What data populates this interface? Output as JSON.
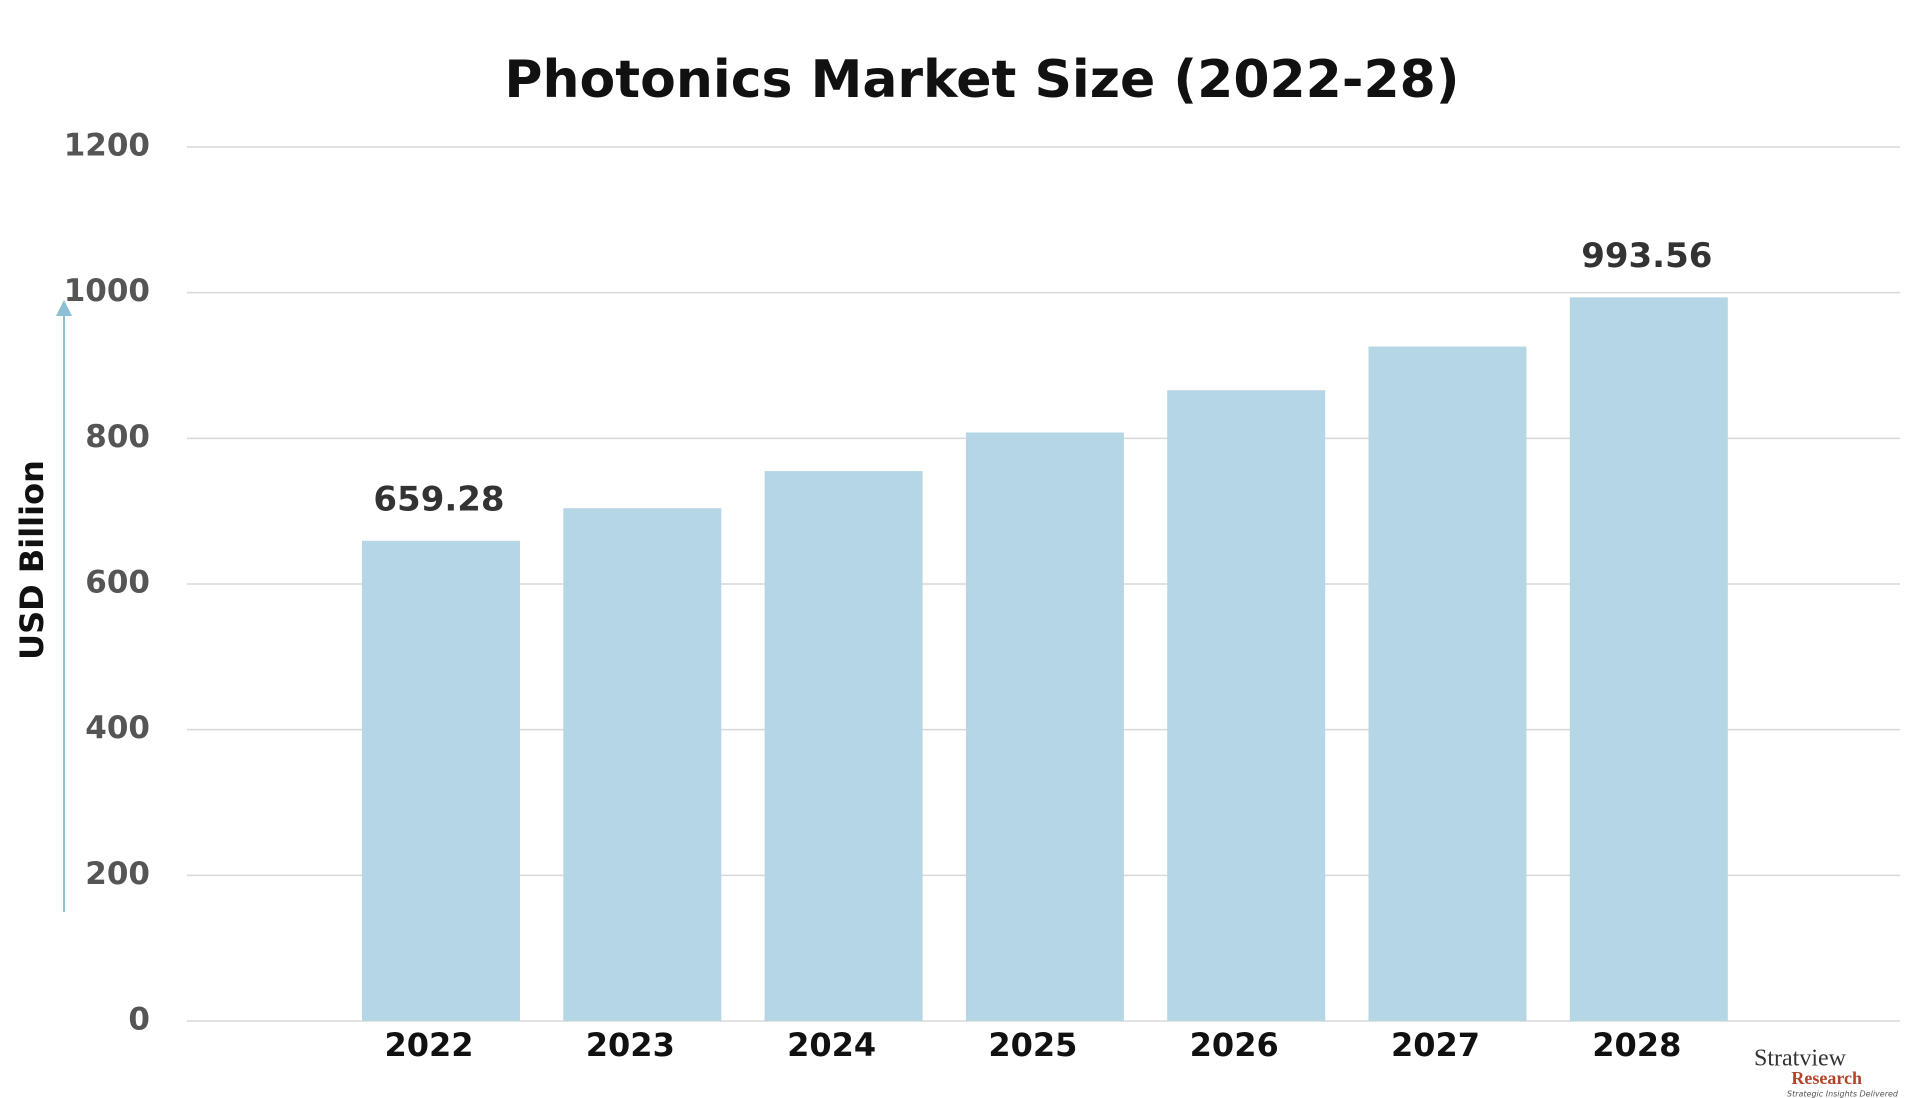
{
  "chart_data": {
    "type": "bar",
    "title": "Photonics Market Size (2022-28)",
    "y_label": "USD Billion",
    "categories": [
      "2022",
      "2023",
      "2024",
      "2025",
      "2026",
      "2027",
      "2028"
    ],
    "values": [
      659.28,
      704,
      755,
      808,
      866,
      926,
      993.56
    ],
    "value_labels": [
      "659.28",
      null,
      null,
      null,
      null,
      null,
      "993.56"
    ],
    "color": "#b5d6e4",
    "ylim": [
      0,
      1200
    ],
    "yticks": [
      0,
      200,
      400,
      600,
      800,
      1000,
      1200
    ],
    "grid": true,
    "logo": {
      "name": "Stratview",
      "sub": "Research",
      "tagline": "Strategic Insights Delivered"
    }
  }
}
